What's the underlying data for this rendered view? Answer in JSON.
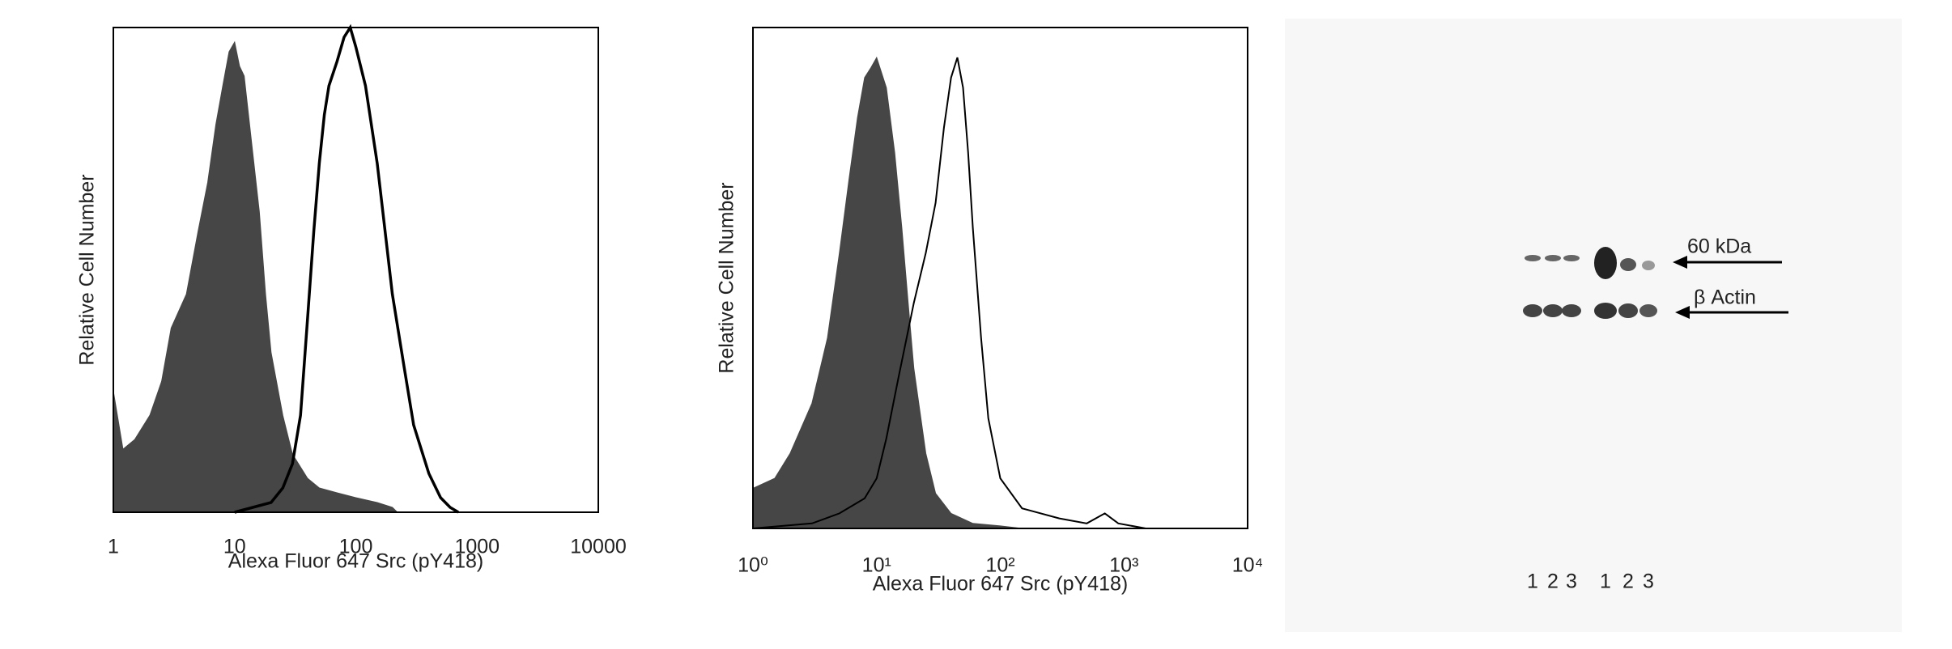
{
  "chart_data": [
    {
      "type": "histogram-overlay",
      "xlabel": "Alexa Fluor 647 Src (pY418)",
      "ylabel": "Relative Cell Number",
      "xscale": "log",
      "xlim": [
        1,
        10000
      ],
      "xticks": [
        1,
        10,
        100,
        1000,
        10000
      ],
      "ylim": [
        0,
        100
      ],
      "grid": false,
      "series": [
        {
          "style": "filled",
          "color": "#464646",
          "x": [
            1,
            1.2,
            1.5,
            2,
            2.5,
            3,
            4,
            5,
            6,
            7,
            8,
            9,
            10,
            11,
            12,
            14,
            16,
            18,
            20,
            25,
            30,
            40,
            50,
            70,
            100,
            150,
            200,
            220
          ],
          "values": [
            25,
            13,
            15,
            20,
            27,
            38,
            45,
            58,
            68,
            80,
            88,
            95,
            97,
            92,
            90,
            75,
            62,
            45,
            33,
            20,
            12,
            7,
            5,
            4,
            3,
            2,
            1,
            0
          ]
        },
        {
          "style": "outline",
          "color": "#000000",
          "x": [
            10,
            20,
            25,
            30,
            35,
            40,
            45,
            50,
            55,
            60,
            70,
            80,
            90,
            100,
            120,
            150,
            180,
            200,
            250,
            300,
            400,
            500,
            600,
            700
          ],
          "values": [
            0,
            2,
            5,
            10,
            20,
            40,
            58,
            72,
            82,
            88,
            93,
            98,
            100,
            96,
            88,
            72,
            55,
            45,
            30,
            18,
            8,
            3,
            1,
            0
          ]
        }
      ]
    },
    {
      "type": "histogram-overlay",
      "xlabel": "Alexa Fluor 647 Src (pY418)",
      "ylabel": "Relative Cell Number",
      "xscale": "log",
      "xlim": [
        1,
        10000
      ],
      "xticks": [
        {
          "value": 1,
          "label": "10⁰"
        },
        {
          "value": 10,
          "label": "10¹"
        },
        {
          "value": 100,
          "label": "10²"
        },
        {
          "value": 1000,
          "label": "10³"
        },
        {
          "value": 10000,
          "label": "10⁴"
        }
      ],
      "ylim": [
        0,
        100
      ],
      "grid": false,
      "series": [
        {
          "style": "filled",
          "color": "#464646",
          "x": [
            1,
            1.5,
            2,
            3,
            4,
            5,
            6,
            7,
            8,
            9,
            10,
            12,
            14,
            16,
            18,
            20,
            25,
            30,
            40,
            60,
            100,
            150
          ],
          "values": [
            8,
            10,
            15,
            25,
            38,
            55,
            70,
            82,
            90,
            92,
            94,
            88,
            75,
            60,
            45,
            32,
            15,
            7,
            3,
            1,
            0.5,
            0
          ]
        },
        {
          "style": "outline",
          "color": "#000000",
          "x": [
            1,
            3,
            5,
            8,
            10,
            12,
            15,
            20,
            25,
            30,
            35,
            40,
            45,
            50,
            55,
            60,
            70,
            80,
            100,
            150,
            300,
            500,
            700,
            900,
            1500,
            10000
          ],
          "values": [
            0,
            1,
            3,
            6,
            10,
            18,
            30,
            45,
            55,
            65,
            80,
            90,
            94,
            88,
            75,
            60,
            38,
            22,
            10,
            4,
            2,
            1,
            3,
            1,
            0,
            0
          ]
        }
      ]
    }
  ],
  "blot": {
    "labels": [
      "60 kDa",
      "β Actin"
    ],
    "lanes": [
      "1",
      "2",
      "3",
      "1",
      "2",
      "3"
    ]
  }
}
